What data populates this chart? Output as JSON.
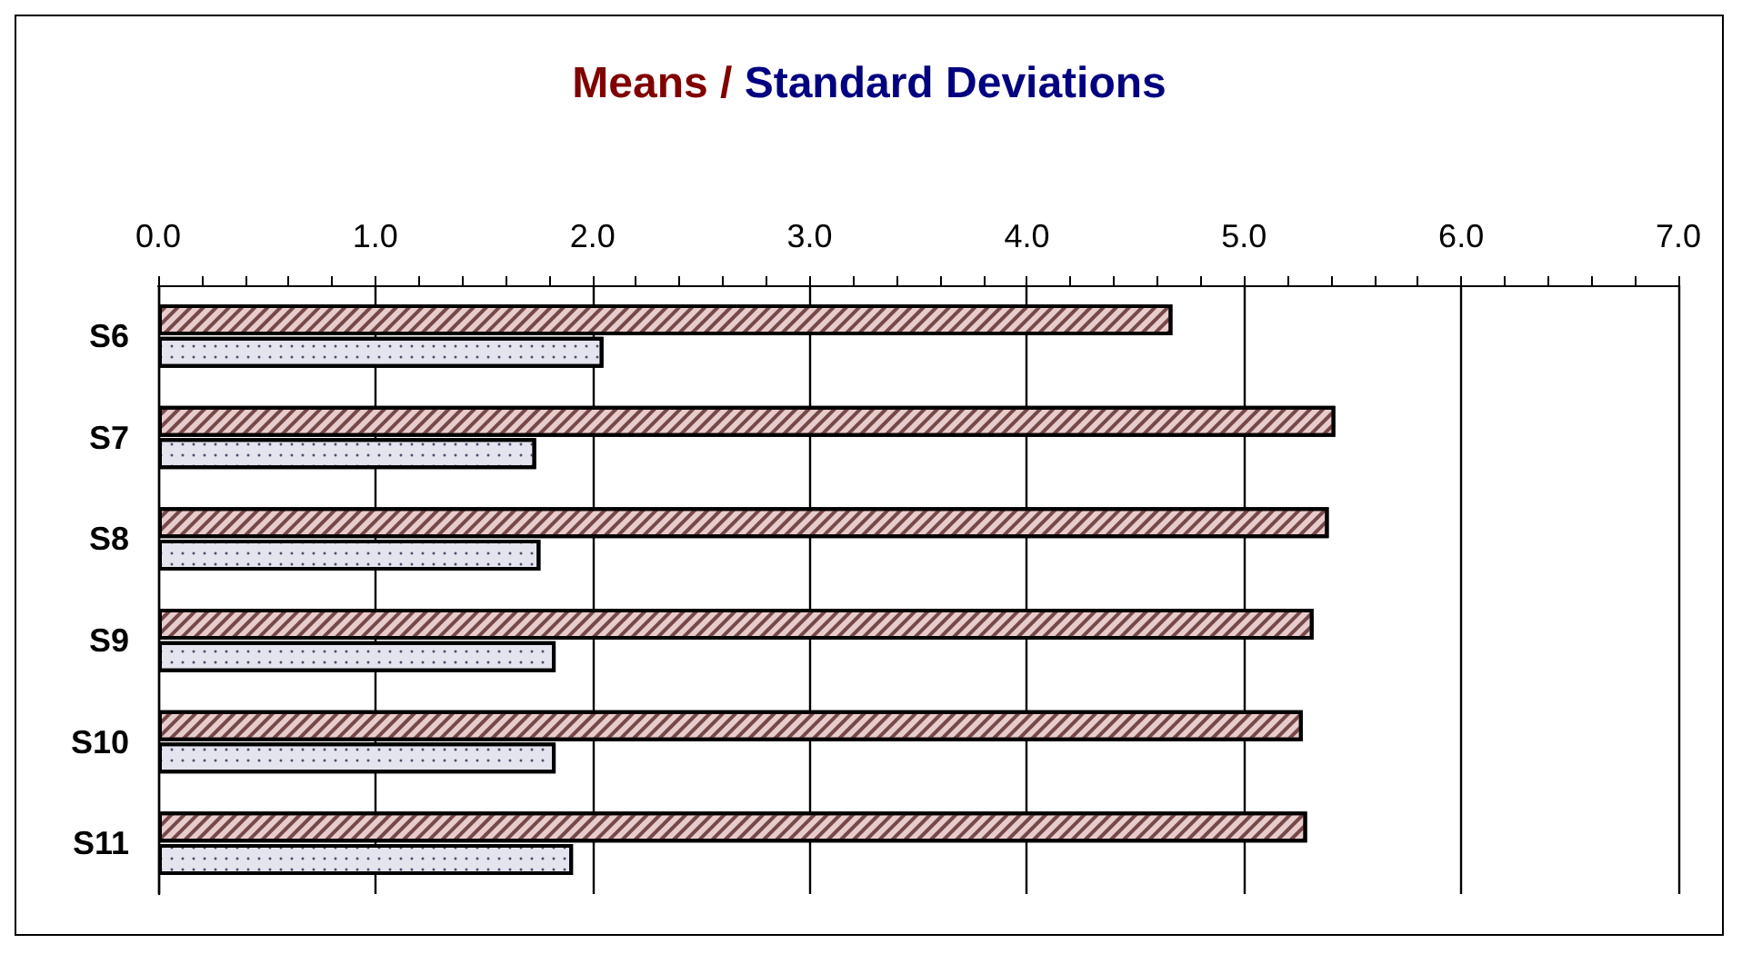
{
  "chart_data": {
    "type": "bar",
    "orientation": "horizontal",
    "title": "Means / Standard Deviations",
    "categories": [
      "S6",
      "S7",
      "S8",
      "S9",
      "S10",
      "S11"
    ],
    "series": [
      {
        "color": "#e8cccc",
        "values": [
          4.67,
          5.42,
          5.39,
          5.32,
          5.27,
          5.29
        ]
      },
      {
        "color": "#e4e4ee",
        "values": [
          2.05,
          1.74,
          1.76,
          1.83,
          1.83,
          1.91
        ]
      }
    ],
    "xlim": [
      0,
      7
    ],
    "xticks": [
      {
        "value": 0,
        "label": "0.0"
      },
      {
        "value": 1,
        "label": "1.0"
      },
      {
        "value": 2,
        "label": "2.0"
      },
      {
        "value": 3,
        "label": "3.0"
      },
      {
        "value": 4,
        "label": "4.0"
      },
      {
        "value": 5,
        "label": "5.0"
      },
      {
        "value": 6,
        "label": "6.0"
      },
      {
        "value": 7,
        "label": "7.0"
      }
    ],
    "grid": "x"
  }
}
